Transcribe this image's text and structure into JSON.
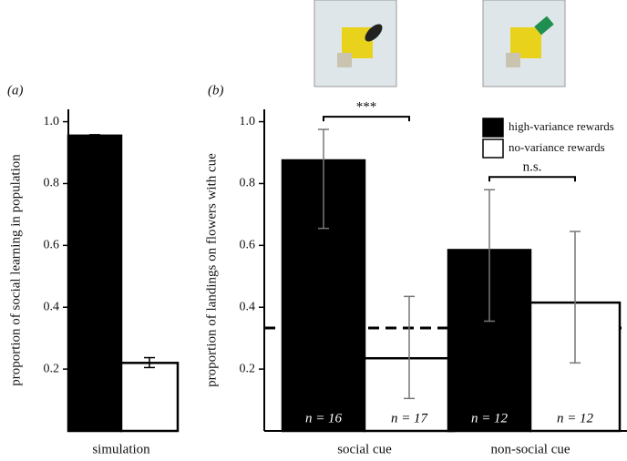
{
  "chart_data": [
    {
      "type": "bar",
      "panel_label": "(a)",
      "y_label": "proportion of social learning in population",
      "categories": [
        "simulation"
      ],
      "series": [
        {
          "color": "#000000",
          "values": [
            0.955
          ],
          "ci": [
            [
              0.952,
              0.958
            ]
          ]
        },
        {
          "color": "#ffffff",
          "values": [
            0.22
          ],
          "ci": [
            [
              0.205,
              0.237
            ]
          ]
        }
      ],
      "errorbar_color": "#000000",
      "ylim": [
        0,
        1.04
      ],
      "yticks": [
        0.2,
        0.4,
        0.6,
        0.8,
        {
          "value": 1,
          "label": "1.0"
        }
      ]
    },
    {
      "type": "bar",
      "panel_label": "(b)",
      "y_label": "proportion of landings on flowers with cue",
      "categories": [
        "social cue",
        "non-social cue"
      ],
      "series": [
        {
          "name": "high-variance rewards",
          "color": "#000000",
          "values": [
            0.875,
            0.585
          ],
          "ci": [
            [
              0.655,
              0.975
            ],
            [
              0.355,
              0.78
            ]
          ],
          "n_labels": [
            "n = 16",
            "n = 12"
          ]
        },
        {
          "name": "no-variance rewards",
          "color": "#ffffff",
          "values": [
            0.235,
            0.415
          ],
          "ci": [
            [
              0.105,
              0.435
            ],
            [
              0.22,
              0.645
            ]
          ],
          "n_labels": [
            "n = 17",
            "n = 12"
          ]
        }
      ],
      "significance": [
        "***",
        "n.s."
      ],
      "reference_line": 0.333,
      "errorbar_color": "#777777",
      "legend": "top-right",
      "ylim": [
        0,
        1.04
      ],
      "yticks": [
        0.2,
        0.4,
        0.6,
        0.8,
        {
          "value": 1,
          "label": "1.0"
        }
      ]
    }
  ]
}
